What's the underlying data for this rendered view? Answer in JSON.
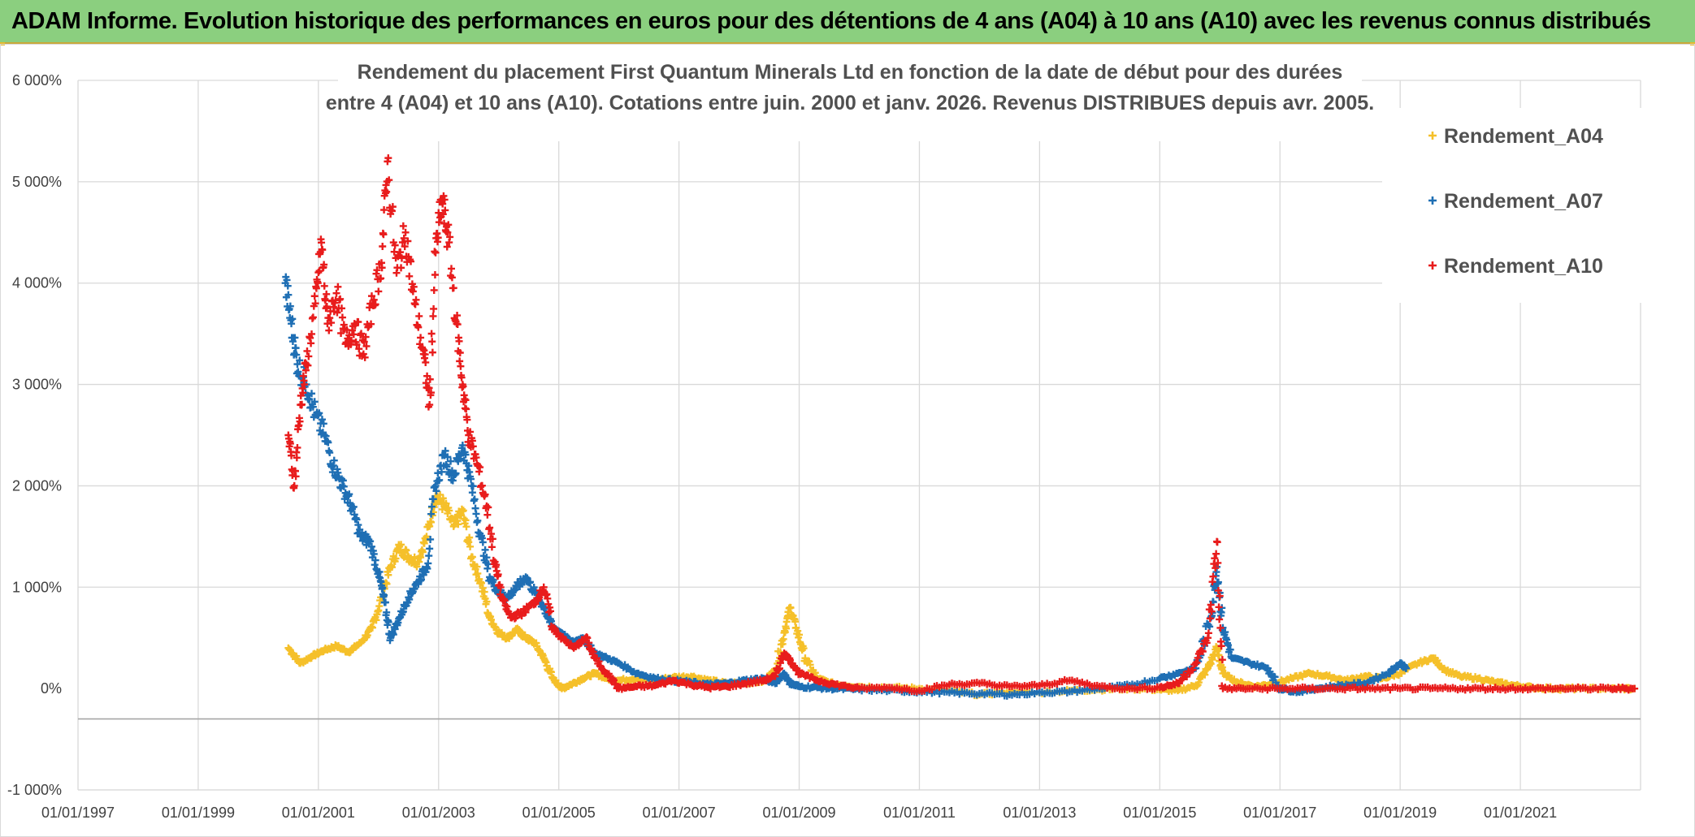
{
  "banner": {
    "title": "ADAM Informe. Evolution historique des performances en euros pour des détentions de 4 ans (A04) à 10 ans (A10) avec les revenus connus distribués"
  },
  "chart_data": {
    "type": "scatter",
    "title_lines": [
      "Rendement du placement First Quantum Minerals Ltd en fonction de la date de début pour des durées",
      "entre 4 (A04) et 10 ans (A10). Cotations entre juin. 2000 et janv. 2026. Revenus DISTRIBUES depuis avr. 2005."
    ],
    "xlabel": "",
    "ylabel": "",
    "x_tick_labels": [
      "01/01/1997",
      "01/01/1999",
      "01/01/2001",
      "01/01/2003",
      "01/01/2005",
      "01/01/2007",
      "01/01/2009",
      "01/01/2011",
      "01/01/2013",
      "01/01/2015",
      "01/01/2017",
      "01/01/2019",
      "01/01/2021"
    ],
    "y_tick_labels": [
      "-1 000%",
      "0%",
      "1 000%",
      "2 000%",
      "3 000%",
      "4 000%",
      "5 000%",
      "6 000%"
    ],
    "y_ticks": [
      -1000,
      0,
      1000,
      2000,
      3000,
      4000,
      5000,
      6000
    ],
    "ylim": [
      -1000,
      6000
    ],
    "xlim": [
      1997.0,
      2023.0
    ],
    "grid": true,
    "legend_position": "top-right",
    "marker": "+",
    "series": [
      {
        "name": "Rendement_A04",
        "color": "#f5c02a",
        "points": [
          [
            2000.5,
            400
          ],
          [
            2000.7,
            250
          ],
          [
            2000.9,
            320
          ],
          [
            2001.1,
            380
          ],
          [
            2001.3,
            420
          ],
          [
            2001.5,
            360
          ],
          [
            2001.7,
            450
          ],
          [
            2001.9,
            600
          ],
          [
            2002.05,
            900
          ],
          [
            2002.2,
            1200
          ],
          [
            2002.35,
            1400
          ],
          [
            2002.5,
            1300
          ],
          [
            2002.65,
            1250
          ],
          [
            2002.8,
            1500
          ],
          [
            2002.95,
            1900
          ],
          [
            2003.1,
            1800
          ],
          [
            2003.25,
            1600
          ],
          [
            2003.4,
            1750
          ],
          [
            2003.55,
            1300
          ],
          [
            2003.7,
            1050
          ],
          [
            2003.85,
            700
          ],
          [
            2004.0,
            550
          ],
          [
            2004.15,
            500
          ],
          [
            2004.3,
            580
          ],
          [
            2004.45,
            500
          ],
          [
            2004.6,
            450
          ],
          [
            2004.75,
            300
          ],
          [
            2004.9,
            100
          ],
          [
            2005.05,
            0
          ],
          [
            2005.2,
            40
          ],
          [
            2005.4,
            100
          ],
          [
            2005.6,
            150
          ],
          [
            2005.8,
            100
          ],
          [
            2006.0,
            80
          ],
          [
            2006.3,
            100
          ],
          [
            2006.6,
            80
          ],
          [
            2006.9,
            110
          ],
          [
            2007.2,
            120
          ],
          [
            2007.5,
            80
          ],
          [
            2007.8,
            50
          ],
          [
            2008.1,
            60
          ],
          [
            2008.4,
            70
          ],
          [
            2008.6,
            180
          ],
          [
            2008.75,
            550
          ],
          [
            2008.85,
            800
          ],
          [
            2008.95,
            600
          ],
          [
            2009.1,
            300
          ],
          [
            2009.3,
            100
          ],
          [
            2009.6,
            40
          ],
          [
            2010.0,
            20
          ],
          [
            2010.5,
            10
          ],
          [
            2011.0,
            0
          ],
          [
            2011.5,
            -20
          ],
          [
            2012.0,
            -60
          ],
          [
            2012.5,
            -30
          ],
          [
            2013.0,
            -40
          ],
          [
            2013.5,
            -20
          ],
          [
            2014.0,
            -10
          ],
          [
            2014.5,
            0
          ],
          [
            2015.0,
            -10
          ],
          [
            2015.3,
            -20
          ],
          [
            2015.6,
            30
          ],
          [
            2015.8,
            200
          ],
          [
            2015.95,
            400
          ],
          [
            2016.05,
            150
          ],
          [
            2016.3,
            60
          ],
          [
            2016.6,
            20
          ],
          [
            2016.9,
            50
          ],
          [
            2017.2,
            100
          ],
          [
            2017.5,
            150
          ],
          [
            2017.8,
            120
          ],
          [
            2018.1,
            80
          ],
          [
            2018.4,
            120
          ],
          [
            2018.7,
            100
          ],
          [
            2019.0,
            150
          ],
          [
            2019.3,
            250
          ],
          [
            2019.55,
            300
          ],
          [
            2019.75,
            180
          ],
          [
            2020.0,
            120
          ],
          [
            2020.3,
            100
          ],
          [
            2020.6,
            60
          ],
          [
            2020.9,
            30
          ],
          [
            2021.2,
            10
          ],
          [
            2021.6,
            0
          ],
          [
            2022.0,
            0
          ],
          [
            2022.5,
            0
          ],
          [
            2022.9,
            0
          ]
        ]
      },
      {
        "name": "Rendement_A07",
        "color": "#1f6fb4",
        "points": [
          [
            2000.45,
            4000
          ],
          [
            2000.55,
            3600
          ],
          [
            2000.65,
            3200
          ],
          [
            2000.8,
            3000
          ],
          [
            2000.95,
            2700
          ],
          [
            2001.1,
            2500
          ],
          [
            2001.25,
            2200
          ],
          [
            2001.4,
            2000
          ],
          [
            2001.55,
            1800
          ],
          [
            2001.7,
            1500
          ],
          [
            2001.85,
            1450
          ],
          [
            2002.0,
            1150
          ],
          [
            2002.1,
            850
          ],
          [
            2002.2,
            500
          ],
          [
            2002.35,
            700
          ],
          [
            2002.5,
            900
          ],
          [
            2002.65,
            1050
          ],
          [
            2002.8,
            1200
          ],
          [
            2002.95,
            2000
          ],
          [
            2003.1,
            2300
          ],
          [
            2003.25,
            2100
          ],
          [
            2003.4,
            2400
          ],
          [
            2003.55,
            2000
          ],
          [
            2003.7,
            1500
          ],
          [
            2003.85,
            1100
          ],
          [
            2004.0,
            950
          ],
          [
            2004.15,
            900
          ],
          [
            2004.3,
            1000
          ],
          [
            2004.45,
            1100
          ],
          [
            2004.6,
            950
          ],
          [
            2004.75,
            800
          ],
          [
            2004.9,
            600
          ],
          [
            2005.05,
            550
          ],
          [
            2005.2,
            450
          ],
          [
            2005.4,
            500
          ],
          [
            2005.6,
            350
          ],
          [
            2005.8,
            300
          ],
          [
            2006.0,
            250
          ],
          [
            2006.3,
            150
          ],
          [
            2006.6,
            100
          ],
          [
            2006.9,
            80
          ],
          [
            2007.2,
            60
          ],
          [
            2007.5,
            40
          ],
          [
            2007.8,
            50
          ],
          [
            2008.1,
            80
          ],
          [
            2008.4,
            100
          ],
          [
            2008.6,
            50
          ],
          [
            2008.75,
            150
          ],
          [
            2008.85,
            50
          ],
          [
            2009.0,
            20
          ],
          [
            2009.3,
            10
          ],
          [
            2009.6,
            0
          ],
          [
            2010.0,
            -10
          ],
          [
            2010.5,
            -20
          ],
          [
            2011.0,
            -30
          ],
          [
            2011.5,
            -40
          ],
          [
            2012.0,
            -50
          ],
          [
            2012.5,
            -60
          ],
          [
            2013.0,
            -40
          ],
          [
            2013.5,
            -30
          ],
          [
            2014.0,
            0
          ],
          [
            2014.5,
            30
          ],
          [
            2015.0,
            100
          ],
          [
            2015.3,
            150
          ],
          [
            2015.6,
            200
          ],
          [
            2015.85,
            700
          ],
          [
            2015.95,
            1200
          ],
          [
            2016.05,
            600
          ],
          [
            2016.2,
            300
          ],
          [
            2016.5,
            250
          ],
          [
            2016.8,
            200
          ],
          [
            2017.0,
            0
          ],
          [
            2017.3,
            -30
          ],
          [
            2017.6,
            0
          ],
          [
            2018.0,
            30
          ],
          [
            2018.4,
            50
          ],
          [
            2018.8,
            150
          ],
          [
            2019.0,
            250
          ],
          [
            2019.1,
            200
          ]
        ]
      },
      {
        "name": "Rendement_A10",
        "color": "#e81c1c",
        "points": [
          [
            2000.5,
            2500
          ],
          [
            2000.6,
            2000
          ],
          [
            2000.7,
            2800
          ],
          [
            2000.8,
            3200
          ],
          [
            2000.95,
            3800
          ],
          [
            2001.05,
            4400
          ],
          [
            2001.15,
            3600
          ],
          [
            2001.3,
            3900
          ],
          [
            2001.45,
            3400
          ],
          [
            2001.6,
            3600
          ],
          [
            2001.75,
            3300
          ],
          [
            2001.9,
            3800
          ],
          [
            2002.05,
            4200
          ],
          [
            2002.15,
            5200
          ],
          [
            2002.3,
            4100
          ],
          [
            2002.45,
            4500
          ],
          [
            2002.6,
            3800
          ],
          [
            2002.75,
            3300
          ],
          [
            2002.85,
            2800
          ],
          [
            2002.95,
            4300
          ],
          [
            2003.05,
            4800
          ],
          [
            2003.15,
            4500
          ],
          [
            2003.3,
            3600
          ],
          [
            2003.4,
            3000
          ],
          [
            2003.5,
            2500
          ],
          [
            2003.65,
            2200
          ],
          [
            2003.8,
            1800
          ],
          [
            2003.95,
            1200
          ],
          [
            2004.05,
            900
          ],
          [
            2004.2,
            700
          ],
          [
            2004.4,
            750
          ],
          [
            2004.6,
            850
          ],
          [
            2004.75,
            1000
          ],
          [
            2004.9,
            600
          ],
          [
            2005.05,
            500
          ],
          [
            2005.25,
            400
          ],
          [
            2005.45,
            500
          ],
          [
            2005.6,
            300
          ],
          [
            2005.8,
            150
          ],
          [
            2006.0,
            0
          ],
          [
            2006.3,
            20
          ],
          [
            2006.6,
            30
          ],
          [
            2006.9,
            80
          ],
          [
            2007.2,
            40
          ],
          [
            2007.5,
            10
          ],
          [
            2007.8,
            20
          ],
          [
            2008.1,
            50
          ],
          [
            2008.4,
            80
          ],
          [
            2008.6,
            120
          ],
          [
            2008.75,
            350
          ],
          [
            2008.85,
            280
          ],
          [
            2009.0,
            150
          ],
          [
            2009.3,
            80
          ],
          [
            2009.6,
            40
          ],
          [
            2010.0,
            0
          ],
          [
            2010.5,
            10
          ],
          [
            2011.0,
            -20
          ],
          [
            2011.5,
            40
          ],
          [
            2012.0,
            50
          ],
          [
            2012.5,
            20
          ],
          [
            2013.0,
            30
          ],
          [
            2013.5,
            80
          ],
          [
            2014.0,
            20
          ],
          [
            2014.5,
            0
          ],
          [
            2015.0,
            10
          ],
          [
            2015.3,
            50
          ],
          [
            2015.6,
            250
          ],
          [
            2015.8,
            500
          ],
          [
            2015.95,
            1450
          ],
          [
            2016.05,
            0
          ],
          [
            2016.5,
            0
          ],
          [
            2017.0,
            0
          ],
          [
            2017.5,
            0
          ],
          [
            2018.0,
            0
          ],
          [
            2018.5,
            0
          ],
          [
            2019.0,
            0
          ],
          [
            2019.5,
            0
          ],
          [
            2020.0,
            0
          ],
          [
            2020.5,
            0
          ],
          [
            2021.0,
            0
          ],
          [
            2021.5,
            0
          ],
          [
            2022.0,
            0
          ],
          [
            2022.5,
            0
          ],
          [
            2022.9,
            0
          ]
        ]
      }
    ]
  }
}
